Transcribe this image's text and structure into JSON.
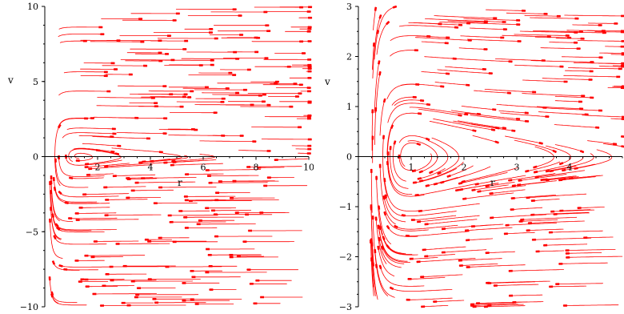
{
  "chart_data": [
    {
      "type": "streamplot",
      "xlabel": "r",
      "ylabel": "v",
      "xlim": [
        0,
        10
      ],
      "ylim": [
        -10,
        10
      ],
      "x_ticks": [
        2,
        4,
        6,
        8,
        10
      ],
      "x_tick_labels": [
        "2",
        "4",
        "6",
        "8",
        "10"
      ],
      "y_ticks": [
        -10,
        -5,
        0,
        5,
        10
      ],
      "y_tick_labels": [
        "−10",
        "−5",
        "0",
        "5",
        "10"
      ],
      "color": "#ff0000",
      "grid": false
    },
    {
      "type": "streamplot",
      "xlabel": "r",
      "ylabel": "v",
      "xlim": [
        0,
        5
      ],
      "ylim": [
        -3,
        3
      ],
      "x_ticks": [
        1,
        2,
        3,
        4
      ],
      "x_tick_labels": [
        "1",
        "2",
        "3",
        "4"
      ],
      "y_ticks": [
        -3,
        -2,
        -1,
        0,
        1,
        2,
        3
      ],
      "y_tick_labels": [
        "−3",
        "−2",
        "−1",
        "0",
        "1",
        "2",
        "3"
      ],
      "color": "#ff0000",
      "grid": false
    }
  ]
}
